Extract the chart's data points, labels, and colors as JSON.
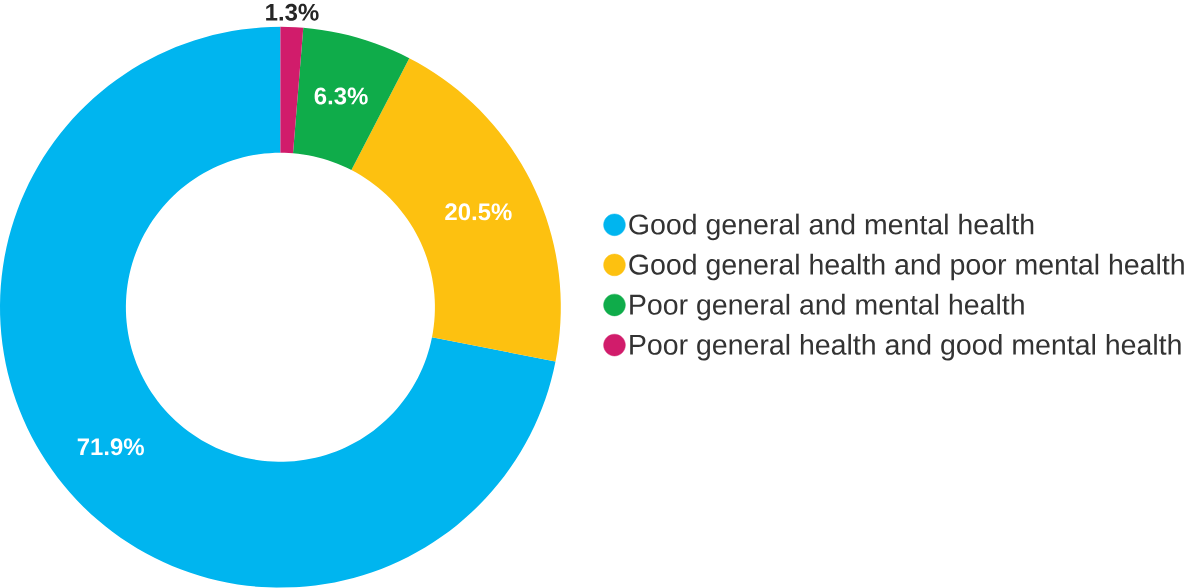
{
  "chart_data": {
    "type": "donut",
    "categories": [
      "Good general and mental health",
      "Good general health and poor mental health",
      "Poor general and mental health",
      "Poor general health and good mental health"
    ],
    "values": [
      71.9,
      20.5,
      6.3,
      1.3
    ],
    "colors": [
      "#00b5ef",
      "#fdc110",
      "#0fac4a",
      "#d11c6b"
    ],
    "value_labels": [
      "71.9%",
      "20.5%",
      "6.3%",
      "1.3%"
    ],
    "legend": "right"
  }
}
